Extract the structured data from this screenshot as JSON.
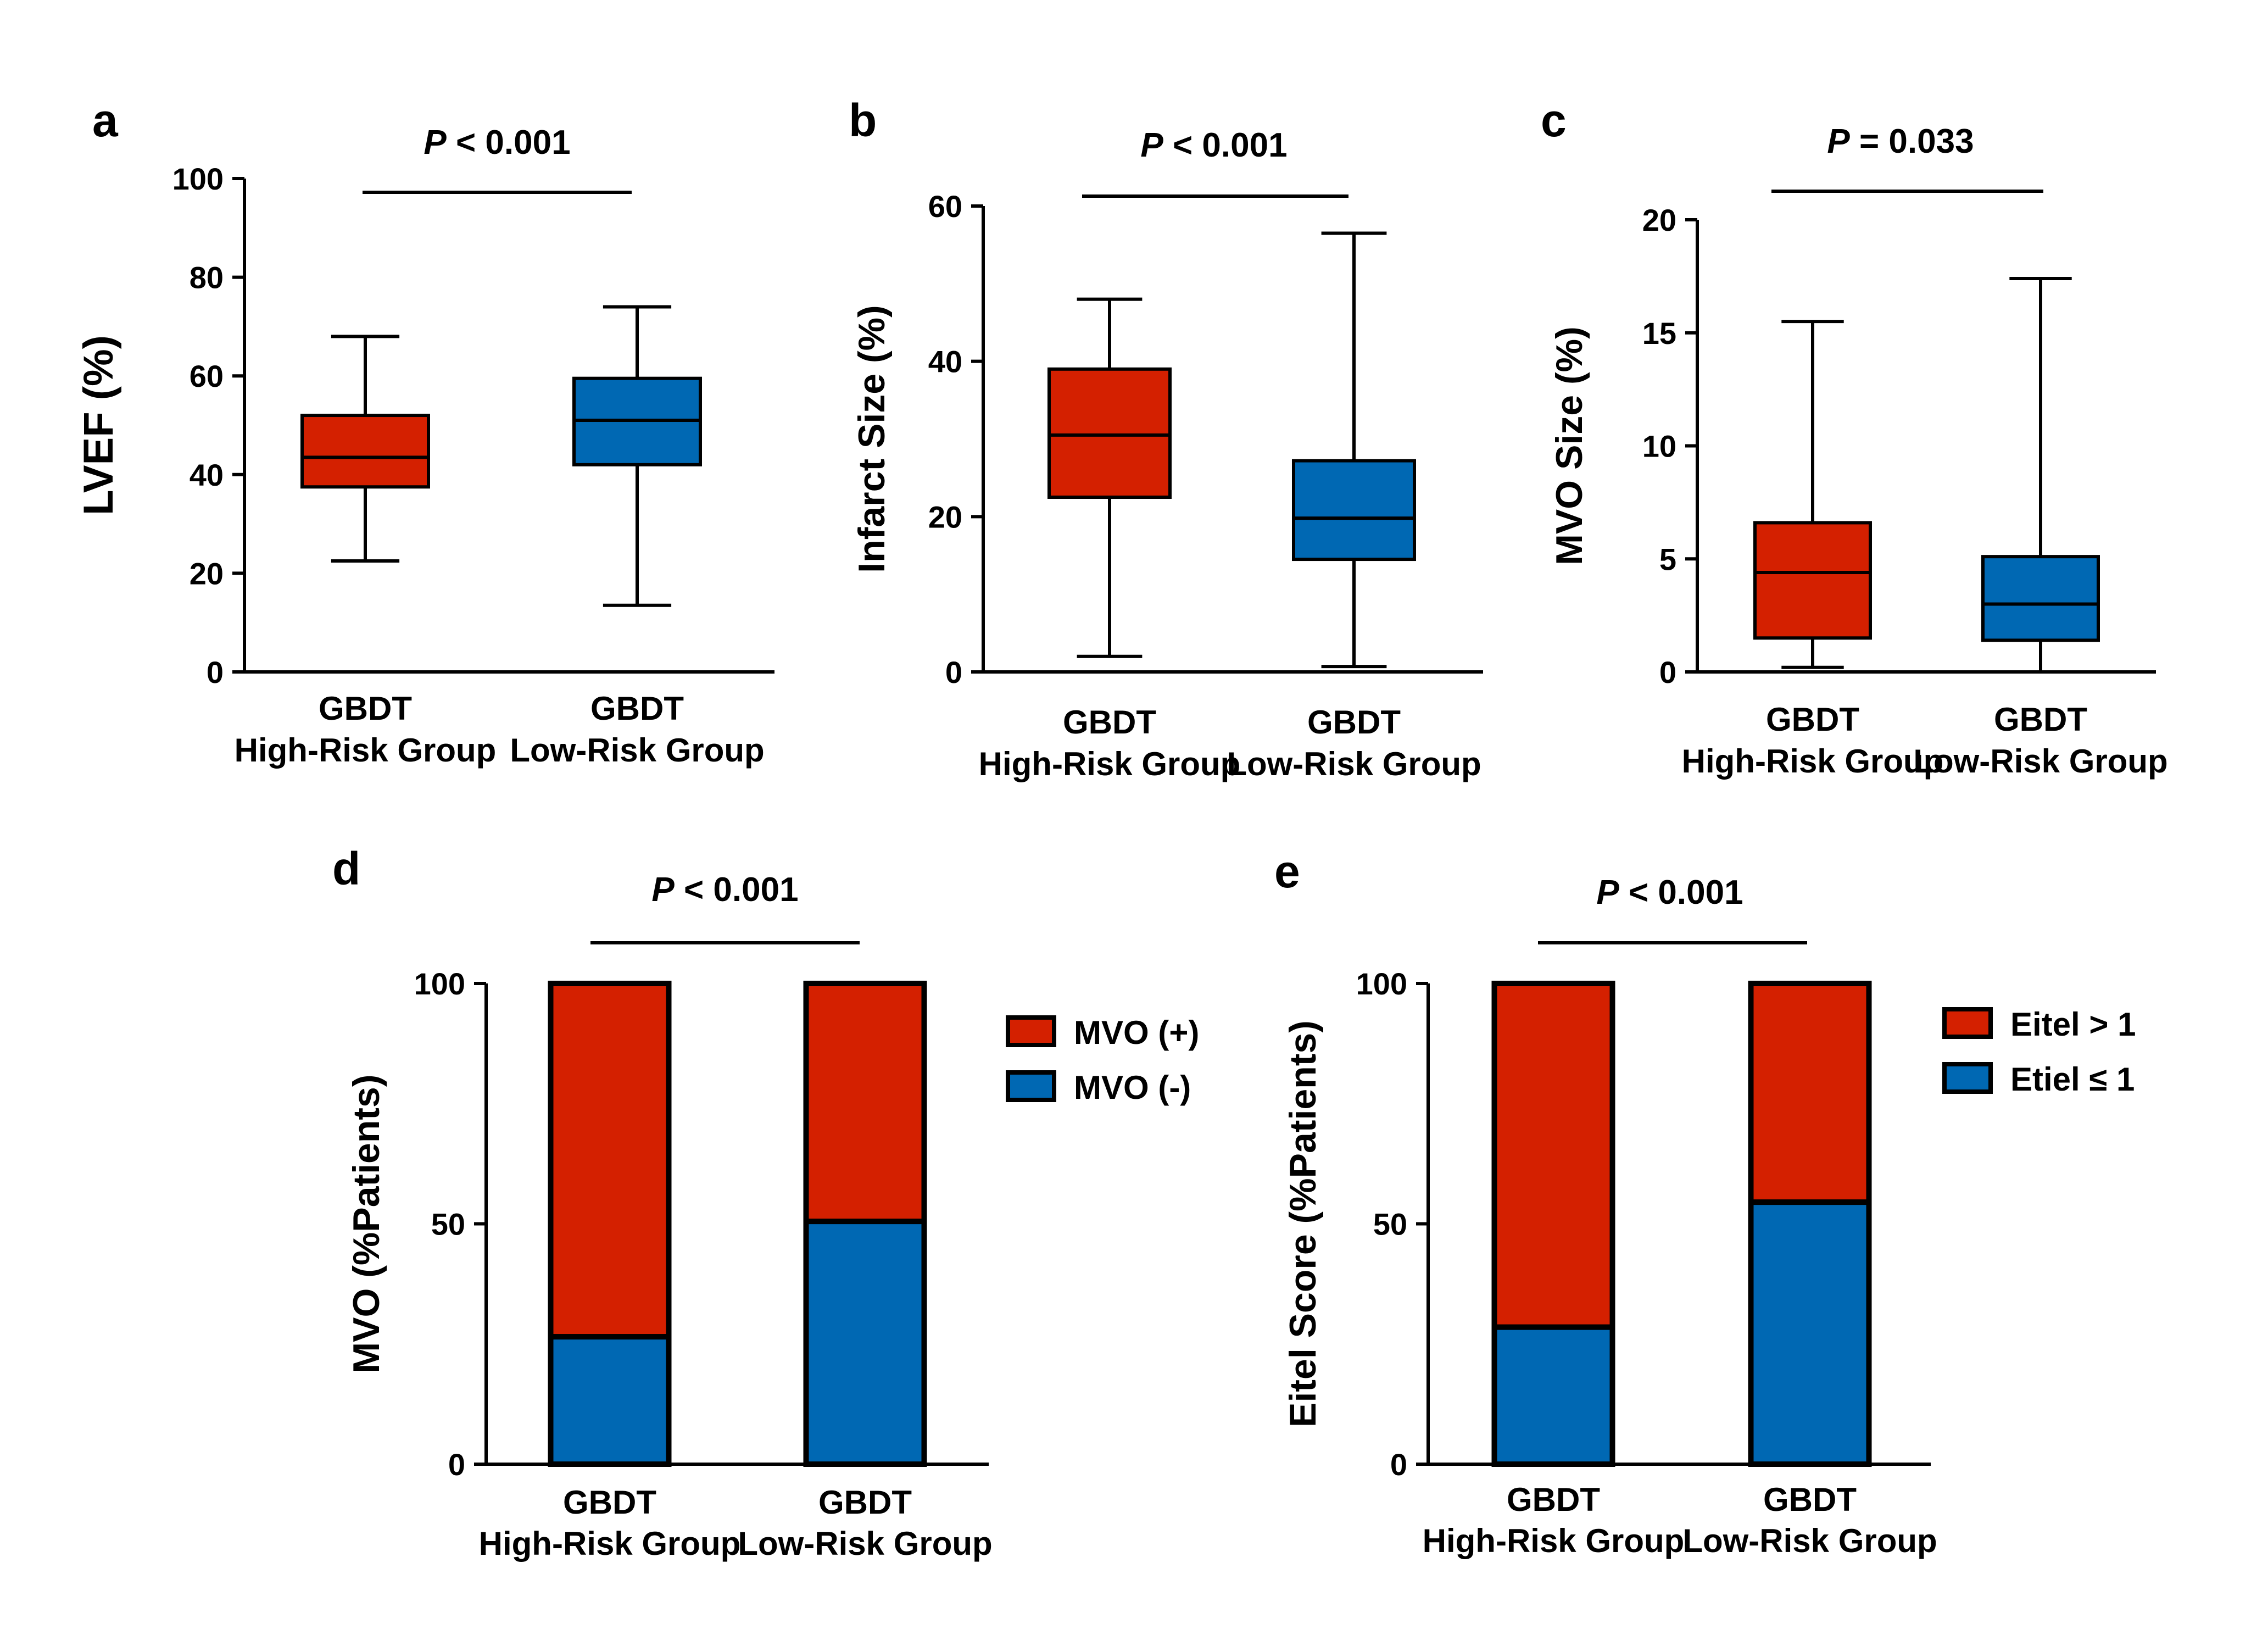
{
  "colors": {
    "high": "#D42000",
    "low": "#0068B3",
    "stroke": "#000000"
  },
  "panels": [
    {
      "letter": "a",
      "kind": "box",
      "ylabel": "LVEF (%)",
      "ptext": "< 0.001",
      "pitalic": "P",
      "ylim": [
        0,
        100
      ],
      "yticks": [
        "0",
        "20",
        "40",
        "60",
        "80",
        "100"
      ],
      "categories": [
        {
          "line1": "GBDT",
          "line2": "High-Risk Group"
        },
        {
          "line1": "GBDT",
          "line2": "Low-Risk Group"
        }
      ]
    },
    {
      "letter": "b",
      "kind": "box",
      "ylabel": "Infarct Size (%)",
      "ptext": "< 0.001",
      "pitalic": "P",
      "ylim": [
        0,
        60
      ],
      "yticks": [
        "0",
        "20",
        "40",
        "60"
      ],
      "categories": [
        {
          "line1": "GBDT",
          "line2": "High-Risk Group"
        },
        {
          "line1": "GBDT",
          "line2": "Low-Risk Group"
        }
      ]
    },
    {
      "letter": "c",
      "kind": "box",
      "ylabel": "MVO Size (%)",
      "ptext": "= 0.033",
      "pitalic": "P",
      "ylim": [
        0,
        20
      ],
      "yticks": [
        "0",
        "5",
        "10",
        "15",
        "20"
      ],
      "categories": [
        {
          "line1": "GBDT",
          "line2": "High-Risk Group"
        },
        {
          "line1": "GBDT",
          "line2": "Low-Risk Group"
        }
      ]
    },
    {
      "letter": "d",
      "kind": "stacked",
      "ylabel": "MVO (%Patients)",
      "ptext": "< 0.001",
      "pitalic": "P",
      "ylim": [
        0,
        100
      ],
      "yticks": [
        "0",
        "50",
        "100"
      ],
      "categories": [
        {
          "line1": "GBDT",
          "line2": "High-Risk Group"
        },
        {
          "line1": "GBDT",
          "line2": "Low-Risk Group"
        }
      ],
      "legend": [
        "MVO (+)",
        "MVO (-)"
      ]
    },
    {
      "letter": "e",
      "kind": "stacked",
      "ylabel": "Eitel Score (%Patients)",
      "ptext": "< 0.001",
      "pitalic": "P",
      "ylim": [
        0,
        100
      ],
      "yticks": [
        "0",
        "50",
        "100"
      ],
      "categories": [
        {
          "line1": "GBDT",
          "line2": "High-Risk Group"
        },
        {
          "line1": "GBDT",
          "line2": "Low-Risk Group"
        }
      ],
      "legend": [
        "Eitel > 1",
        "Etiel ≤ 1"
      ]
    }
  ],
  "chart_data": [
    {
      "type": "box",
      "ylabel": "LVEF (%)",
      "ylim": [
        0,
        100
      ],
      "categories": [
        "GBDT High-Risk Group",
        "GBDT Low-Risk Group"
      ],
      "boxes": [
        {
          "min": 22.5,
          "q1": 37.5,
          "median": 43.5,
          "q3": 52,
          "max": 68
        },
        {
          "min": 13.5,
          "q1": 42,
          "median": 51,
          "q3": 59.5,
          "max": 74
        }
      ],
      "annotation": "P < 0.001"
    },
    {
      "type": "box",
      "ylabel": "Infarct Size (%)",
      "ylim": [
        0,
        60
      ],
      "categories": [
        "GBDT High-Risk Group",
        "GBDT Low-Risk Group"
      ],
      "boxes": [
        {
          "min": 2,
          "q1": 22.5,
          "median": 30.5,
          "q3": 39,
          "max": 48
        },
        {
          "min": 0.7,
          "q1": 14.5,
          "median": 19.8,
          "q3": 27.2,
          "max": 56.5
        }
      ],
      "annotation": "P < 0.001"
    },
    {
      "type": "box",
      "ylabel": "MVO Size (%)",
      "ylim": [
        0,
        20
      ],
      "categories": [
        "GBDT High-Risk Group",
        "GBDT Low-Risk Group"
      ],
      "boxes": [
        {
          "min": 0.2,
          "q1": 1.5,
          "median": 4.4,
          "q3": 6.6,
          "max": 15.5
        },
        {
          "min": 0,
          "q1": 1.4,
          "median": 3,
          "q3": 5.1,
          "max": 17.4
        }
      ],
      "annotation": "P = 0.033"
    },
    {
      "type": "bar",
      "stacked": true,
      "ylabel": "MVO (%Patients)",
      "ylim": [
        0,
        100
      ],
      "categories": [
        "GBDT High-Risk Group",
        "GBDT Low-Risk Group"
      ],
      "series": [
        {
          "name": "MVO (-)",
          "values": [
            26.5,
            50.5
          ]
        },
        {
          "name": "MVO (+)",
          "values": [
            73.5,
            49.5
          ]
        }
      ],
      "legend_position": "right",
      "annotation": "P < 0.001"
    },
    {
      "type": "bar",
      "stacked": true,
      "ylabel": "Eitel Score (%Patients)",
      "ylim": [
        0,
        100
      ],
      "categories": [
        "GBDT High-Risk Group",
        "GBDT Low-Risk Group"
      ],
      "series": [
        {
          "name": "Etiel ≤ 1",
          "values": [
            28.5,
            54.5
          ]
        },
        {
          "name": "Eitel > 1",
          "values": [
            71.5,
            45.5
          ]
        }
      ],
      "legend_position": "right",
      "annotation": "P < 0.001"
    }
  ]
}
